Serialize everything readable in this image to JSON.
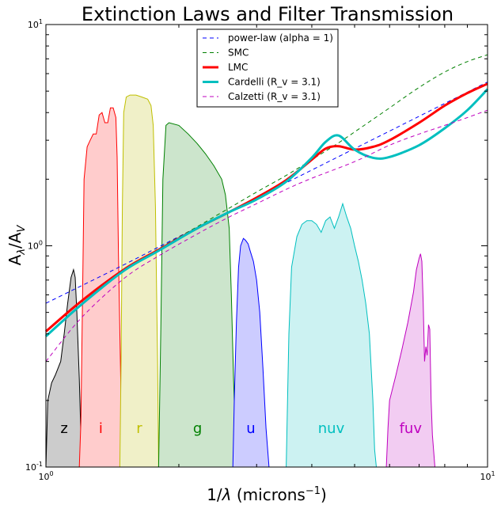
{
  "chart_data": {
    "type": "line",
    "title": "Extinction Laws and Filter Transmission",
    "xlabel_main": "1/",
    "xlabel_lambda": "λ",
    "xlabel_units": " (microns",
    "xlabel_exp": "−1",
    "xlabel_close": ")",
    "ylabel_main": "A",
    "ylabel_sub1": "λ",
    "ylabel_slash": "/A",
    "ylabel_sub2": "V",
    "xscale": "log",
    "yscale": "log",
    "xlim": [
      1,
      10
    ],
    "ylim": [
      0.1,
      10
    ],
    "grid": false,
    "legend_position": "top-center",
    "x_ticks": [
      {
        "value": 1,
        "base": "10",
        "exp": "0"
      },
      {
        "value": 10,
        "base": "10",
        "exp": "1"
      }
    ],
    "y_ticks": [
      {
        "value": 0.1,
        "base": "10",
        "exp": "-1"
      },
      {
        "value": 1,
        "base": "10",
        "exp": "0"
      },
      {
        "value": 10,
        "base": "10",
        "exp": "1"
      }
    ],
    "series": [
      {
        "name": "power-law (alpha = 1)",
        "color": "#0000ff",
        "dash": "dashed",
        "width": 1,
        "x": [
          1.0,
          1.5,
          2.0,
          3.0,
          4.0,
          5.0,
          6.0,
          7.0,
          8.0,
          9.0,
          10.0
        ],
        "y": [
          0.55,
          0.82,
          1.1,
          1.65,
          2.2,
          2.75,
          3.3,
          3.85,
          4.4,
          4.95,
          5.5
        ]
      },
      {
        "name": "SMC",
        "color": "#008000",
        "dash": "dashed",
        "width": 1,
        "x": [
          1.0,
          1.2,
          1.5,
          1.8,
          2.2,
          2.6,
          3.0,
          3.5,
          4.0,
          4.6,
          5.2,
          6.0,
          7.0,
          8.0,
          9.0,
          10.0
        ],
        "y": [
          0.41,
          0.56,
          0.78,
          0.97,
          1.22,
          1.48,
          1.75,
          2.08,
          2.45,
          2.92,
          3.45,
          4.2,
          5.2,
          6.1,
          6.8,
          7.3
        ]
      },
      {
        "name": "LMC",
        "color": "#ff0000",
        "dash": "solid",
        "width": 3,
        "x": [
          1.0,
          1.2,
          1.5,
          1.8,
          2.2,
          2.6,
          3.0,
          3.5,
          4.0,
          4.3,
          4.6,
          5.0,
          5.5,
          6.0,
          7.0,
          8.0,
          9.0,
          10.0
        ],
        "y": [
          0.41,
          0.56,
          0.78,
          0.96,
          1.2,
          1.42,
          1.65,
          1.98,
          2.45,
          2.75,
          2.82,
          2.72,
          2.8,
          3.0,
          3.6,
          4.3,
          4.9,
          5.4
        ]
      },
      {
        "name": "Cardelli (R_v = 3.1)",
        "color": "#00bfbf",
        "dash": "solid",
        "width": 3,
        "x": [
          1.0,
          1.2,
          1.5,
          1.8,
          2.2,
          2.6,
          3.0,
          3.5,
          4.0,
          4.3,
          4.6,
          5.0,
          5.5,
          6.0,
          7.0,
          8.0,
          9.0,
          10.0
        ],
        "y": [
          0.39,
          0.54,
          0.77,
          0.95,
          1.2,
          1.42,
          1.62,
          1.95,
          2.5,
          2.95,
          3.15,
          2.72,
          2.5,
          2.52,
          2.85,
          3.4,
          4.1,
          5.1
        ]
      },
      {
        "name": "Calzetti (R_v = 3.1)",
        "color": "#bf00bf",
        "dash": "dashed",
        "width": 1,
        "x": [
          1.0,
          1.2,
          1.5,
          1.8,
          2.2,
          2.6,
          3.0,
          3.5,
          4.0,
          5.0,
          6.0,
          7.0,
          8.0,
          9.0,
          10.0
        ],
        "y": [
          0.3,
          0.47,
          0.71,
          0.9,
          1.13,
          1.35,
          1.55,
          1.8,
          2.02,
          2.4,
          2.85,
          3.2,
          3.5,
          3.8,
          4.1
        ]
      }
    ],
    "filters": [
      {
        "name": "z",
        "label": "z",
        "color": "#000000",
        "fill": "#cccccc",
        "x": [
          1.0,
          1.01,
          1.03,
          1.05,
          1.08,
          1.1,
          1.12,
          1.14,
          1.155,
          1.165,
          1.175,
          1.19,
          1.2,
          1.21
        ],
        "y": [
          0.1,
          0.2,
          0.24,
          0.26,
          0.3,
          0.4,
          0.55,
          0.72,
          0.78,
          0.72,
          0.5,
          0.25,
          0.14,
          0.1
        ]
      },
      {
        "name": "i",
        "label": "i",
        "color": "#ff0000",
        "fill": "#ffcccc",
        "x": [
          1.19,
          1.2,
          1.21,
          1.22,
          1.24,
          1.26,
          1.28,
          1.3,
          1.32,
          1.34,
          1.36,
          1.38,
          1.4,
          1.42,
          1.44,
          1.45,
          1.46,
          1.48,
          1.49
        ],
        "y": [
          0.1,
          0.16,
          0.55,
          2.0,
          2.8,
          3.0,
          3.2,
          3.2,
          3.9,
          4.0,
          3.6,
          3.6,
          4.2,
          4.2,
          3.8,
          2.5,
          0.9,
          0.2,
          0.1
        ]
      },
      {
        "name": "r",
        "label": "r",
        "color": "#bfbf00",
        "fill": "#f0f0c8",
        "x": [
          1.47,
          1.48,
          1.49,
          1.5,
          1.52,
          1.55,
          1.6,
          1.65,
          1.7,
          1.73,
          1.75,
          1.77,
          1.79,
          1.8
        ],
        "y": [
          0.1,
          0.3,
          1.5,
          4.0,
          4.7,
          4.8,
          4.8,
          4.7,
          4.6,
          4.3,
          3.5,
          1.5,
          0.3,
          0.1
        ]
      },
      {
        "name": "g",
        "label": "g",
        "color": "#008000",
        "fill": "#cce5cc",
        "x": [
          1.8,
          1.82,
          1.84,
          1.87,
          1.9,
          2.0,
          2.1,
          2.2,
          2.3,
          2.4,
          2.5,
          2.55,
          2.6,
          2.63,
          2.66,
          2.7
        ],
        "y": [
          0.1,
          0.4,
          2.0,
          3.5,
          3.6,
          3.5,
          3.2,
          2.9,
          2.6,
          2.3,
          2.0,
          1.7,
          1.2,
          0.6,
          0.25,
          0.1
        ]
      },
      {
        "name": "u",
        "label": "u",
        "color": "#0000ff",
        "fill": "#ccccff",
        "x": [
          2.65,
          2.67,
          2.7,
          2.73,
          2.76,
          2.8,
          2.83,
          2.87,
          2.9,
          2.95,
          3.0,
          3.05,
          3.1,
          3.15,
          3.2
        ],
        "y": [
          0.1,
          0.2,
          0.45,
          0.8,
          1.0,
          1.08,
          1.06,
          1.02,
          0.95,
          0.85,
          0.7,
          0.5,
          0.28,
          0.15,
          0.1
        ]
      },
      {
        "name": "nuv",
        "label": "nuv",
        "color": "#00bfbf",
        "fill": "#ccf2f2",
        "x": [
          3.5,
          3.55,
          3.6,
          3.7,
          3.8,
          3.9,
          4.0,
          4.1,
          4.2,
          4.3,
          4.4,
          4.5,
          4.6,
          4.7,
          4.8,
          4.9,
          5.0,
          5.1,
          5.2,
          5.3,
          5.4,
          5.5,
          5.55,
          5.6
        ],
        "y": [
          0.1,
          0.4,
          0.8,
          1.1,
          1.25,
          1.3,
          1.3,
          1.25,
          1.15,
          1.3,
          1.35,
          1.2,
          1.35,
          1.55,
          1.35,
          1.2,
          1.0,
          0.85,
          0.7,
          0.55,
          0.4,
          0.2,
          0.12,
          0.1
        ]
      },
      {
        "name": "fuv",
        "label": "fuv",
        "color": "#bf00bf",
        "fill": "#f2ccf2",
        "x": [
          5.9,
          5.95,
          6.0,
          6.2,
          6.4,
          6.6,
          6.8,
          6.9,
          7.0,
          7.05,
          7.1,
          7.15,
          7.2,
          7.25,
          7.3,
          7.35,
          7.4,
          7.45,
          7.5,
          7.6
        ],
        "y": [
          0.1,
          0.15,
          0.2,
          0.26,
          0.34,
          0.45,
          0.62,
          0.78,
          0.88,
          0.92,
          0.85,
          0.55,
          0.3,
          0.35,
          0.32,
          0.44,
          0.42,
          0.2,
          0.14,
          0.1
        ]
      }
    ]
  }
}
